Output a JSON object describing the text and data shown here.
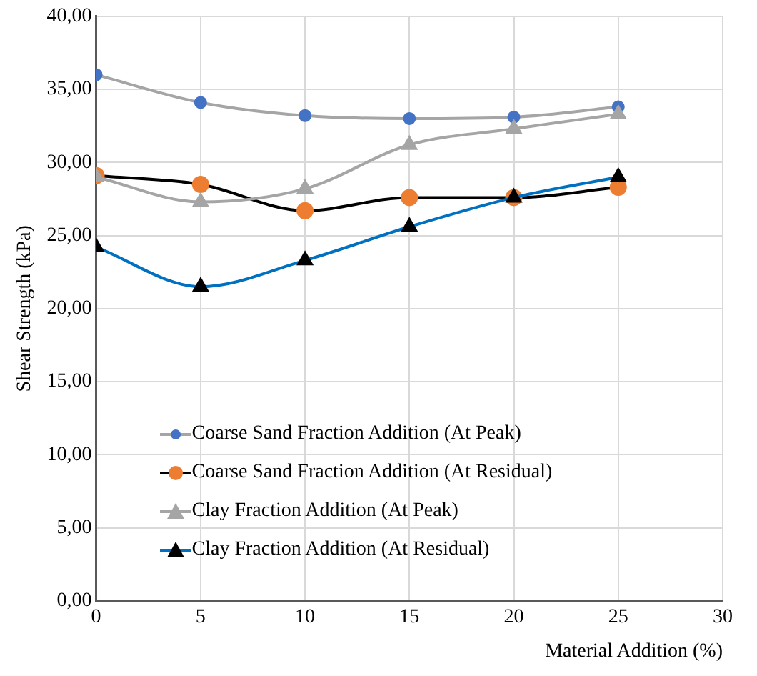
{
  "chart_data": {
    "type": "line",
    "xlabel": "Material Addition (%)",
    "ylabel": "Shear Strength (kPa)",
    "x": [
      0,
      5,
      10,
      15,
      20,
      25
    ],
    "series": [
      {
        "name": "Coarse Sand Fraction Addition (At Peak)",
        "color": "#a5a5a5",
        "colors": [
          "#4472c4",
          "#4472c4",
          "#4472c4",
          "#4472c4",
          "#4472c4",
          "#4472c4"
        ],
        "marker": "circle",
        "values": [
          36.0,
          34.1,
          33.2,
          33.0,
          33.1,
          33.8
        ]
      },
      {
        "name": "Coarse Sand Fraction Addition (At Residual)",
        "color": "#000000",
        "colors": [
          "#ed7d31",
          "#ed7d31",
          "#ed7d31",
          "#ed7d31",
          "#ed7d31",
          "#ed7d31"
        ],
        "marker": "circle",
        "values": [
          29.1,
          28.5,
          26.7,
          27.6,
          27.6,
          28.3
        ]
      },
      {
        "name": "Clay Fraction Addition (At Peak)",
        "color": "#a5a5a5",
        "colors": [
          "#a5a5a5",
          "#a5a5a5",
          "#a5a5a5",
          "#a5a5a5",
          "#a5a5a5",
          "#a5a5a5"
        ],
        "marker": "triangle",
        "values": [
          29.0,
          27.3,
          28.2,
          31.2,
          32.3,
          33.3
        ]
      },
      {
        "name": "Clay Fraction Addition (At Residual)",
        "color": "#0070c0",
        "colors": [
          "#000000",
          "#000000",
          "#000000",
          "#000000",
          "#000000",
          "#000000"
        ],
        "marker": "triangle",
        "values": [
          24.2,
          21.5,
          23.3,
          25.6,
          27.6,
          29.0
        ]
      }
    ],
    "xlim": [
      0,
      30
    ],
    "xticks": [
      0,
      5,
      10,
      15,
      20,
      25,
      30
    ],
    "ylim": [
      0,
      40
    ],
    "yticks": [
      {
        "value": 0,
        "label": "0,00"
      },
      {
        "value": 5,
        "label": "5,00"
      },
      {
        "value": 10,
        "label": "10,00"
      },
      {
        "value": 15,
        "label": "15,00"
      },
      {
        "value": 20,
        "label": "20,00"
      },
      {
        "value": 25,
        "label": "25,00"
      },
      {
        "value": 30,
        "label": "30,00"
      },
      {
        "value": 35,
        "label": "35,00"
      },
      {
        "value": 40,
        "label": "40,00"
      }
    ],
    "grid": true,
    "legend": "bottom left"
  }
}
